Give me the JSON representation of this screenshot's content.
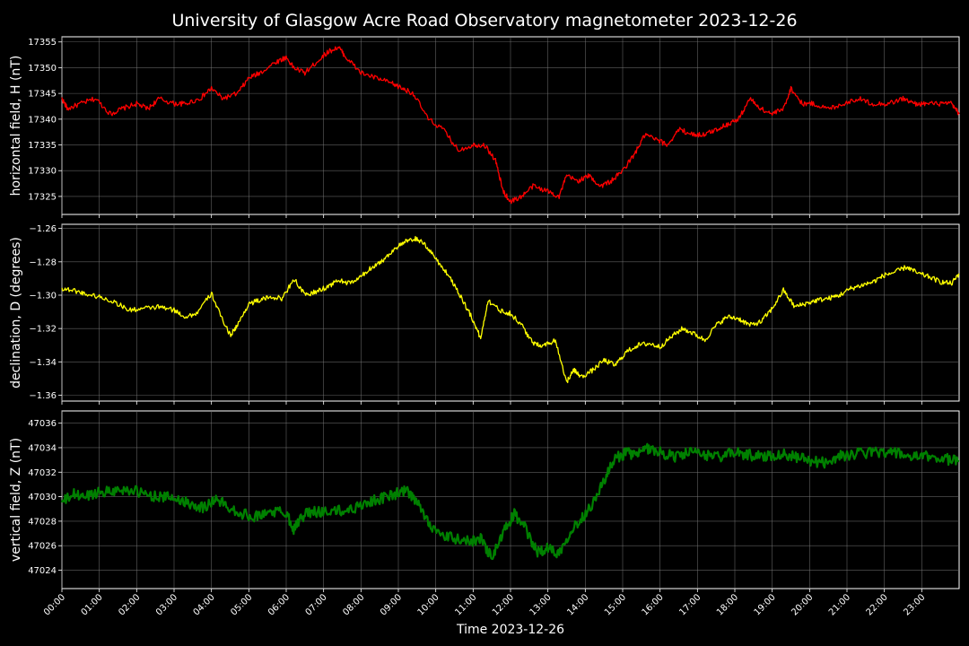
{
  "chart_data": {
    "type": "line",
    "title": "University of Glasgow Acre Road Observatory magnetometer 2023-12-26",
    "xlabel": "Time 2023-12-26",
    "x_ticks": [
      "00:00",
      "01:00",
      "02:00",
      "03:00",
      "04:00",
      "05:00",
      "06:00",
      "07:00",
      "08:00",
      "09:00",
      "10:00",
      "11:00",
      "12:00",
      "13:00",
      "14:00",
      "15:00",
      "16:00",
      "17:00",
      "18:00",
      "19:00",
      "20:00",
      "21:00",
      "22:00",
      "23:00"
    ],
    "xlim_hours": [
      0,
      24
    ],
    "grid": true,
    "panels": [
      {
        "ylabel": "horizontal field, H (nT)",
        "color": "#ff0000",
        "ylim": [
          17321.5,
          17356
        ],
        "yticks": [
          17325,
          17330,
          17335,
          17340,
          17345,
          17350,
          17355
        ],
        "ytick_decimals": 0,
        "noise": 0.5,
        "series": {
          "x": [
            0.0,
            0.15,
            0.5,
            0.9,
            1.3,
            1.6,
            2.0,
            2.3,
            2.6,
            3.0,
            3.3,
            3.7,
            4.0,
            4.3,
            4.7,
            5.0,
            5.3,
            5.7,
            6.0,
            6.2,
            6.5,
            6.8,
            7.1,
            7.4,
            7.6,
            8.0,
            8.4,
            8.8,
            9.1,
            9.4,
            9.8,
            10.2,
            10.6,
            11.0,
            11.3,
            11.6,
            11.8,
            12.0,
            12.3,
            12.6,
            13.0,
            13.3,
            13.5,
            13.8,
            14.1,
            14.4,
            14.7,
            15.0,
            15.3,
            15.6,
            15.9,
            16.2,
            16.5,
            16.9,
            17.2,
            17.5,
            17.8,
            18.1,
            18.4,
            18.7,
            19.0,
            19.3,
            19.5,
            19.8,
            20.1,
            20.5,
            20.9,
            21.3,
            21.7,
            22.1,
            22.5,
            22.8,
            23.1,
            23.5,
            23.8,
            24.0
          ],
          "y": [
            17344,
            17342,
            17343,
            17344,
            17341,
            17342,
            17343,
            17342,
            17344,
            17343,
            17343,
            17344,
            17346,
            17344,
            17345,
            17348,
            17349,
            17351,
            17352,
            17350,
            17349,
            17351,
            17353,
            17354,
            17352,
            17349,
            17348,
            17347,
            17346,
            17345,
            17340,
            17338,
            17334,
            17335,
            17335,
            17332,
            17326,
            17324,
            17325,
            17327,
            17326,
            17325,
            17329,
            17328,
            17329,
            17327,
            17328,
            17330,
            17333,
            17337,
            17336,
            17335,
            17338,
            17337,
            17337,
            17338,
            17339,
            17340,
            17344,
            17342,
            17341,
            17342,
            17346,
            17343,
            17343,
            17342,
            17343,
            17344,
            17343,
            17343,
            17344,
            17343,
            17343,
            17343,
            17343,
            17341
          ]
        }
      },
      {
        "ylabel": "declination, D (degrees)",
        "color": "#ffff00",
        "ylim": [
          -1.3635,
          -1.2575
        ],
        "yticks": [
          -1.36,
          -1.34,
          -1.32,
          -1.3,
          -1.28,
          -1.26
        ],
        "ytick_decimals": 2,
        "noise": 0.0015,
        "series": {
          "x": [
            0.0,
            0.3,
            0.6,
            1.0,
            1.4,
            1.8,
            2.2,
            2.6,
            3.0,
            3.3,
            3.6,
            4.0,
            4.2,
            4.5,
            4.7,
            5.0,
            5.3,
            5.6,
            5.9,
            6.2,
            6.5,
            6.8,
            7.1,
            7.4,
            7.7,
            8.0,
            8.3,
            8.6,
            8.9,
            9.2,
            9.5,
            9.8,
            10.1,
            10.4,
            10.7,
            11.0,
            11.2,
            11.4,
            11.7,
            12.0,
            12.3,
            12.6,
            12.9,
            13.2,
            13.5,
            13.7,
            13.9,
            14.2,
            14.5,
            14.8,
            15.1,
            15.4,
            15.7,
            16.0,
            16.3,
            16.6,
            16.9,
            17.2,
            17.5,
            17.8,
            18.1,
            18.4,
            18.7,
            19.0,
            19.3,
            19.6,
            19.9,
            20.2,
            20.5,
            20.8,
            21.1,
            21.4,
            21.7,
            22.0,
            22.3,
            22.6,
            22.9,
            23.2,
            23.5,
            23.8,
            24.0
          ],
          "y": [
            -1.296,
            -1.297,
            -1.299,
            -1.301,
            -1.304,
            -1.309,
            -1.308,
            -1.307,
            -1.309,
            -1.313,
            -1.311,
            -1.299,
            -1.31,
            -1.324,
            -1.318,
            -1.305,
            -1.303,
            -1.301,
            -1.302,
            -1.29,
            -1.3,
            -1.298,
            -1.295,
            -1.291,
            -1.293,
            -1.289,
            -1.283,
            -1.279,
            -1.272,
            -1.268,
            -1.266,
            -1.272,
            -1.281,
            -1.29,
            -1.302,
            -1.315,
            -1.326,
            -1.303,
            -1.309,
            -1.311,
            -1.318,
            -1.329,
            -1.33,
            -1.327,
            -1.352,
            -1.345,
            -1.349,
            -1.345,
            -1.339,
            -1.342,
            -1.334,
            -1.33,
            -1.329,
            -1.331,
            -1.325,
            -1.32,
            -1.323,
            -1.327,
            -1.318,
            -1.313,
            -1.314,
            -1.318,
            -1.316,
            -1.308,
            -1.297,
            -1.307,
            -1.305,
            -1.303,
            -1.302,
            -1.3,
            -1.296,
            -1.294,
            -1.292,
            -1.288,
            -1.286,
            -1.283,
            -1.287,
            -1.289,
            -1.292,
            -1.293,
            -1.287
          ]
        }
      },
      {
        "ylabel": "vertical field, Z (nT)",
        "color": "#008000",
        "ylim": [
          47022.5,
          47037
        ],
        "yticks": [
          47024,
          47026,
          47028,
          47030,
          47032,
          47034,
          47036
        ],
        "ytick_decimals": 0,
        "noise": 0.45,
        "series": {
          "x": [
            0.0,
            0.3,
            0.6,
            1.0,
            1.4,
            1.8,
            2.2,
            2.6,
            3.0,
            3.4,
            3.8,
            4.1,
            4.4,
            4.8,
            5.2,
            5.6,
            6.0,
            6.2,
            6.5,
            6.9,
            7.3,
            7.7,
            8.1,
            8.5,
            8.9,
            9.2,
            9.5,
            9.8,
            10.1,
            10.5,
            10.9,
            11.2,
            11.5,
            11.8,
            12.1,
            12.4,
            12.7,
            13.0,
            13.3,
            13.6,
            13.9,
            14.2,
            14.5,
            14.8,
            15.1,
            15.4,
            15.7,
            16.0,
            16.4,
            16.8,
            17.2,
            17.6,
            18.0,
            18.4,
            18.8,
            19.2,
            19.6,
            20.0,
            20.4,
            20.8,
            21.2,
            21.6,
            22.0,
            22.4,
            22.8,
            23.2,
            23.6,
            24.0
          ],
          "y": [
            47029.5,
            47030.2,
            47030.0,
            47030.4,
            47030.5,
            47030.6,
            47030.2,
            47030.0,
            47029.9,
            47029.5,
            47029.1,
            47029.8,
            47029.3,
            47028.6,
            47028.4,
            47028.8,
            47028.7,
            47027.4,
            47028.6,
            47028.8,
            47028.8,
            47028.9,
            47029.5,
            47029.8,
            47030.2,
            47030.5,
            47029.5,
            47028.0,
            47026.8,
            47026.6,
            47026.3,
            47026.6,
            47025.0,
            47027.0,
            47028.6,
            47027.4,
            47025.5,
            47025.8,
            47025.4,
            47027.2,
            47028.2,
            47029.5,
            47031.3,
            47033.1,
            47033.6,
            47033.4,
            47034.0,
            47033.6,
            47033.3,
            47033.6,
            47033.4,
            47033.3,
            47033.6,
            47033.4,
            47033.3,
            47033.5,
            47033.3,
            47032.9,
            47032.8,
            47033.3,
            47033.5,
            47033.6,
            47033.7,
            47033.5,
            47033.2,
            47033.3,
            47033.1,
            47032.9
          ]
        }
      }
    ]
  }
}
